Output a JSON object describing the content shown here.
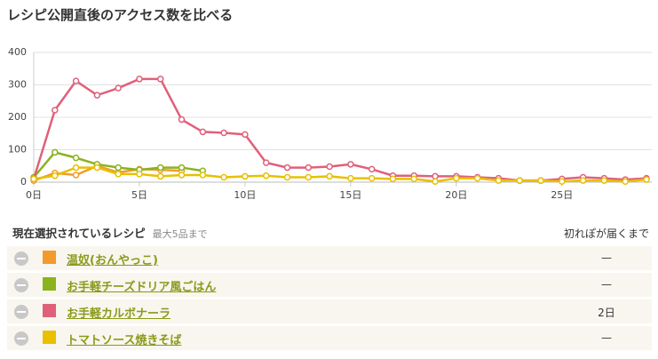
{
  "title": "レシピ公開直後のアクセス数を比べる",
  "chart_data": {
    "type": "line",
    "x": [
      0,
      1,
      2,
      3,
      4,
      5,
      6,
      7,
      8,
      9,
      10,
      11,
      12,
      13,
      14,
      15,
      16,
      17,
      18,
      19,
      20,
      21,
      22,
      23,
      24,
      25,
      26,
      27,
      28,
      29
    ],
    "xlim": [
      0,
      29
    ],
    "xticks": [
      {
        "value": 0,
        "label": "0日"
      },
      {
        "value": 5,
        "label": "5日"
      },
      {
        "value": 10,
        "label": "10日"
      },
      {
        "value": 15,
        "label": "15日"
      },
      {
        "value": 20,
        "label": "20日"
      },
      {
        "value": 25,
        "label": "25日"
      }
    ],
    "ylim": [
      0,
      400
    ],
    "yticks": [
      0,
      100,
      200,
      300,
      400
    ],
    "grid": true,
    "series": [
      {
        "name": "温奴(おんやっこ)",
        "color": "#f39a2c",
        "values": [
          5,
          28,
          22,
          50,
          30,
          40,
          38,
          35,
          null,
          null,
          null,
          null,
          null,
          null,
          null,
          null,
          null,
          null,
          null,
          null,
          null,
          null,
          null,
          null,
          null,
          null,
          null,
          null,
          null,
          null
        ]
      },
      {
        "name": "お手軽チーズドリア風ごはん",
        "color": "#8ab31e",
        "values": [
          15,
          92,
          75,
          55,
          45,
          38,
          45,
          45,
          35,
          null,
          null,
          null,
          null,
          null,
          null,
          null,
          null,
          null,
          null,
          null,
          null,
          null,
          null,
          null,
          null,
          null,
          null,
          null,
          null,
          null
        ]
      },
      {
        "name": "お手軽カルボナーラ",
        "color": "#e0607a",
        "values": [
          10,
          222,
          312,
          268,
          290,
          318,
          318,
          193,
          155,
          152,
          147,
          60,
          45,
          45,
          48,
          55,
          40,
          20,
          20,
          18,
          18,
          15,
          12,
          5,
          5,
          10,
          15,
          12,
          8,
          12
        ]
      },
      {
        "name": "トマトソース焼きそば",
        "color": "#e8c000",
        "values": [
          10,
          20,
          45,
          45,
          25,
          25,
          18,
          22,
          22,
          15,
          18,
          20,
          15,
          15,
          18,
          12,
          12,
          10,
          10,
          2,
          12,
          12,
          5,
          5,
          5,
          2,
          5,
          5,
          2,
          8
        ]
      }
    ]
  },
  "table": {
    "heading": "現在選択されているレシピ",
    "note": "最大5品まで",
    "column": "初れぽが届くまで",
    "until": [
      "—",
      "—",
      "2日",
      "—"
    ]
  }
}
